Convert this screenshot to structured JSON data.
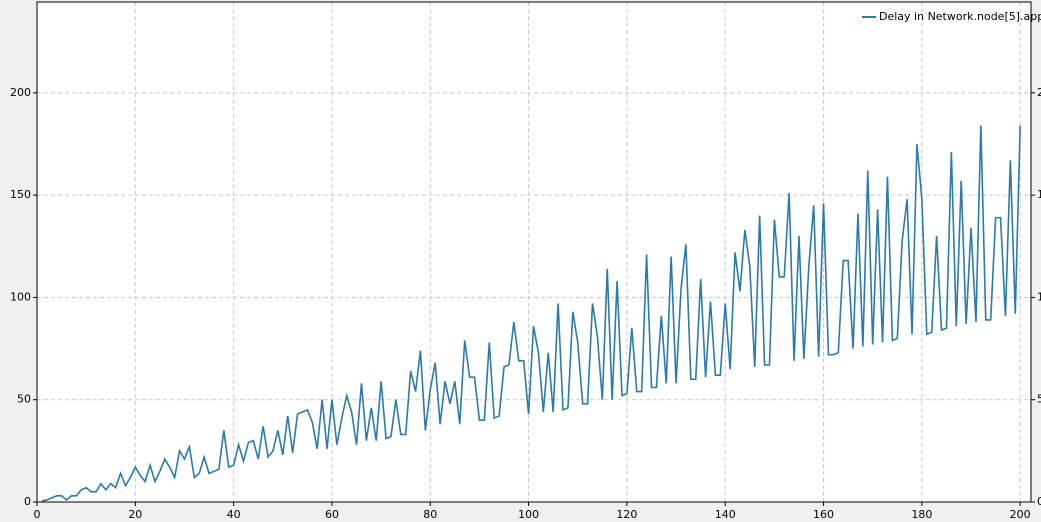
{
  "chart_data": {
    "type": "line",
    "x": [
      1,
      2,
      3,
      4,
      5,
      6,
      7,
      8,
      9,
      10,
      11,
      12,
      13,
      14,
      15,
      16,
      17,
      18,
      19,
      20,
      21,
      22,
      23,
      24,
      25,
      26,
      27,
      28,
      29,
      30,
      31,
      32,
      33,
      34,
      35,
      36,
      37,
      38,
      39,
      40,
      41,
      42,
      43,
      44,
      45,
      46,
      47,
      48,
      49,
      50,
      51,
      52,
      53,
      54,
      55,
      56,
      57,
      58,
      59,
      60,
      61,
      62,
      63,
      64,
      65,
      66,
      67,
      68,
      69,
      70,
      71,
      72,
      73,
      74,
      75,
      76,
      77,
      78,
      79,
      80,
      81,
      82,
      83,
      84,
      85,
      86,
      87,
      88,
      89,
      90,
      91,
      92,
      93,
      94,
      95,
      96,
      97,
      98,
      99,
      100,
      101,
      102,
      103,
      104,
      105,
      106,
      107,
      108,
      109,
      110,
      111,
      112,
      113,
      114,
      115,
      116,
      117,
      118,
      119,
      120,
      121,
      122,
      123,
      124,
      125,
      126,
      127,
      128,
      129,
      130,
      131,
      132,
      133,
      134,
      135,
      136,
      137,
      138,
      139,
      140,
      141,
      142,
      143,
      144,
      145,
      146,
      147,
      148,
      149,
      150,
      151,
      152,
      153,
      154,
      155,
      156,
      157,
      158,
      159,
      160,
      161,
      162,
      163,
      164,
      165,
      166,
      167,
      168,
      169,
      170,
      171,
      172,
      173,
      174,
      175,
      176,
      177,
      178,
      179,
      180,
      181,
      182,
      183,
      184,
      185,
      186,
      187,
      188,
      189,
      190,
      191,
      192,
      193,
      194,
      195,
      196,
      197,
      198,
      199,
      200
    ],
    "series": [
      {
        "name": "Delay in Network.node[5].app",
        "color": "#2a7ab0",
        "values": [
          0.5,
          1,
          2,
          3,
          3,
          1,
          3,
          3,
          6,
          7,
          5,
          5,
          9,
          6,
          9,
          7,
          14,
          8,
          12,
          17,
          13,
          10,
          18,
          10,
          15,
          21,
          17,
          12,
          25,
          21,
          27,
          12,
          14,
          22,
          14,
          15,
          16,
          35,
          17,
          18,
          28,
          20,
          29,
          30,
          21,
          37,
          22,
          25,
          35,
          23,
          42,
          24,
          43,
          44,
          45,
          39,
          26,
          50,
          26,
          50,
          28,
          41,
          52,
          44,
          28,
          58,
          30,
          46,
          30,
          59,
          31,
          32,
          50,
          33,
          33,
          64,
          54,
          74,
          35,
          55,
          68,
          38,
          59,
          48,
          59,
          38,
          79,
          61,
          61,
          40,
          40,
          78,
          41,
          42,
          66,
          67,
          88,
          69,
          69,
          43,
          86,
          73,
          44,
          73,
          44,
          97,
          45,
          46,
          93,
          78,
          48,
          48,
          97,
          81,
          50,
          114,
          50,
          108,
          52,
          53,
          85,
          54,
          54,
          121,
          56,
          56,
          91,
          58,
          120,
          58,
          104,
          126,
          60,
          60,
          109,
          61,
          98,
          62,
          62,
          97,
          65,
          122,
          103,
          133,
          115,
          66,
          140,
          67,
          67,
          138,
          110,
          110,
          151,
          69,
          130,
          70,
          115,
          145,
          71,
          146,
          72,
          72,
          73,
          118,
          118,
          75,
          141,
          76,
          162,
          77,
          143,
          78,
          159,
          79,
          80,
          128,
          148,
          82,
          175,
          148,
          82,
          83,
          130,
          84,
          85,
          171,
          86,
          157,
          87,
          134,
          88,
          184,
          89,
          89,
          139,
          139,
          91,
          167,
          92,
          184
        ]
      }
    ],
    "xlim": [
      0,
      202.2
    ],
    "xticks": [
      0,
      20,
      40,
      60,
      80,
      100,
      120,
      140,
      160,
      180,
      200
    ],
    "ylim": [
      0,
      244.4
    ],
    "yticks": [
      0,
      50,
      100,
      150,
      200
    ],
    "grid": true,
    "legend": "top-right"
  }
}
